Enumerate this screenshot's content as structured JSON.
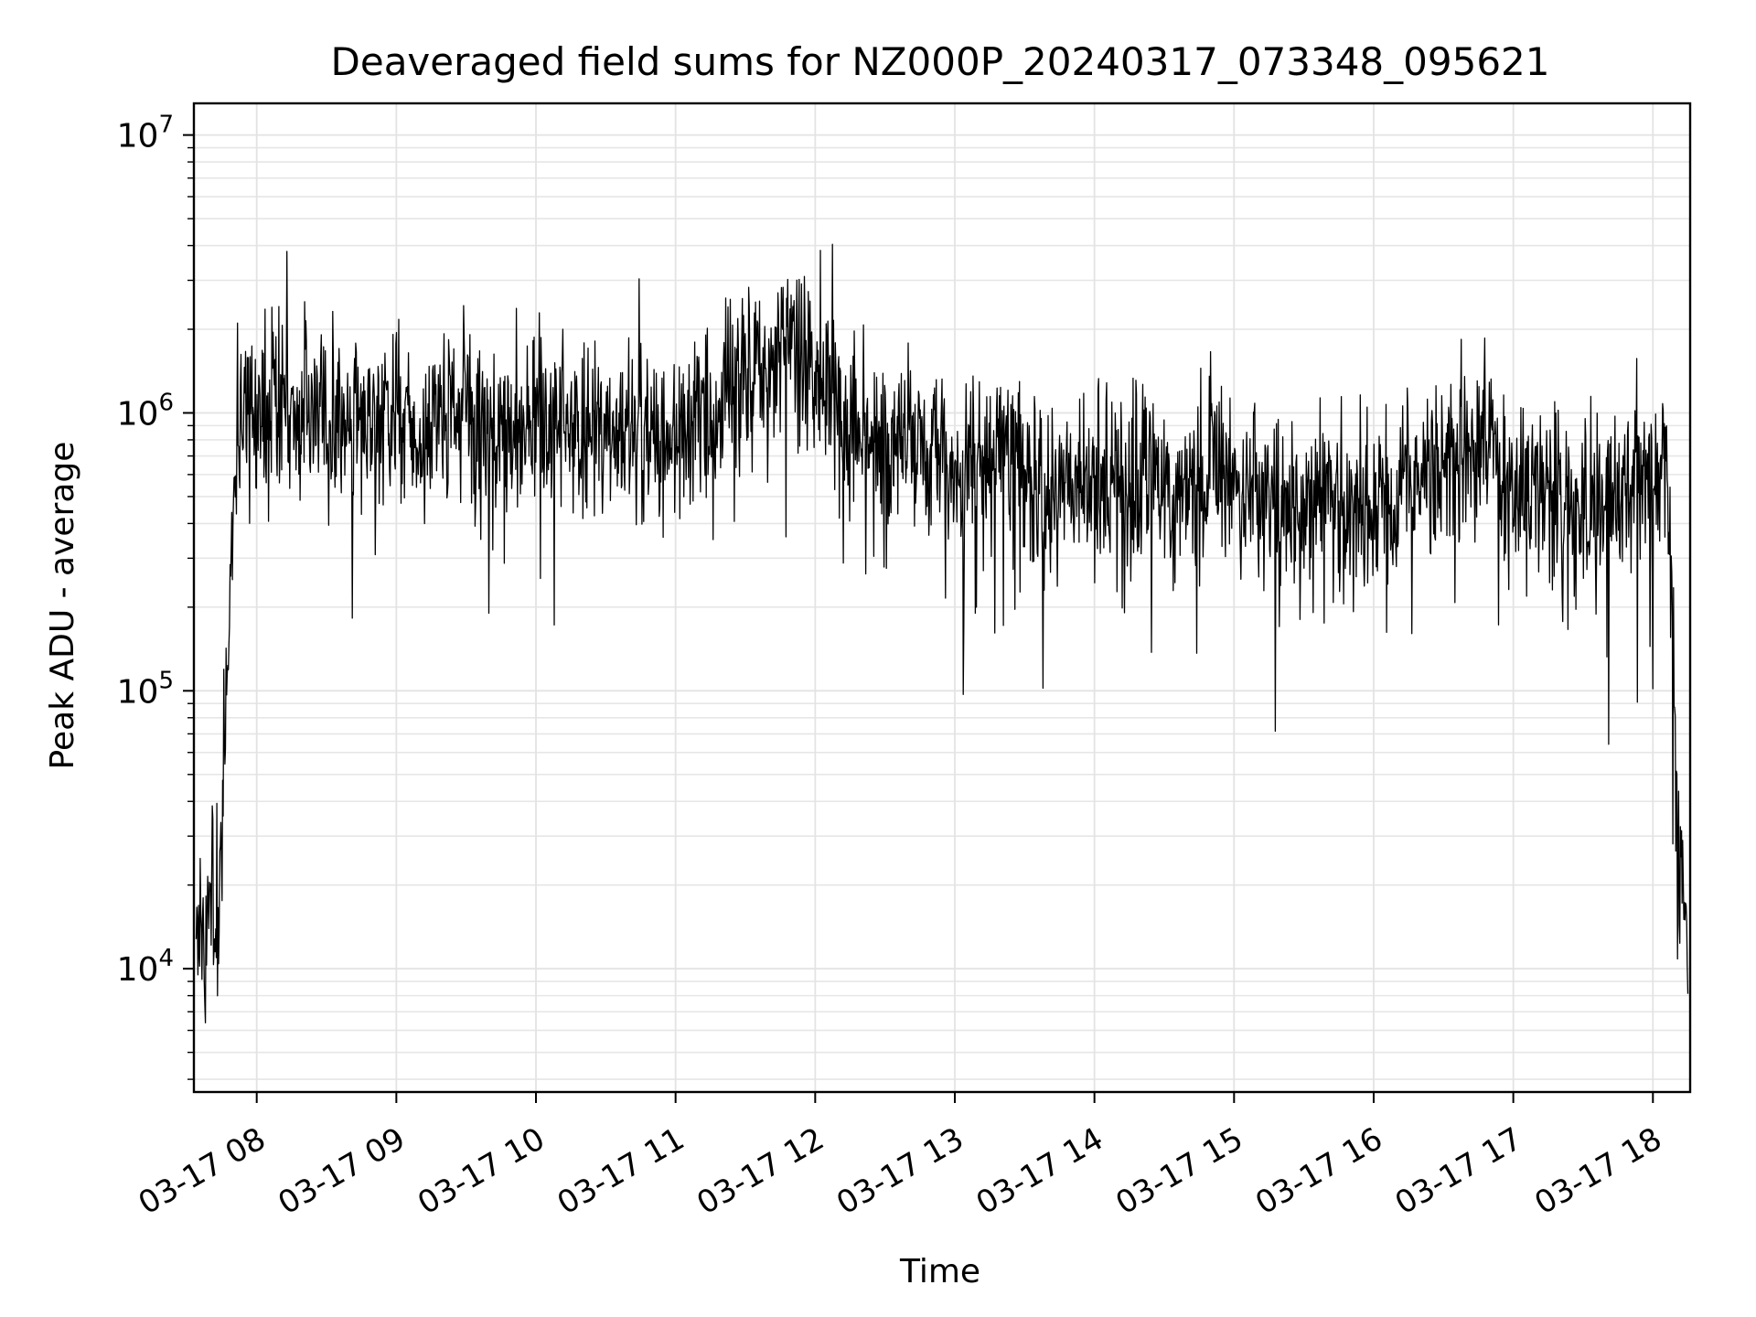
{
  "chart_data": {
    "type": "line",
    "title": "Deaveraged field sums for NZ000P_20240317_073348_095621",
    "xlabel": "Time",
    "ylabel": "Peak ADU - average",
    "yscale": "log",
    "grid": true,
    "legend": "none",
    "x_tick_labels": [
      "03-17 08",
      "03-17 09",
      "03-17 10",
      "03-17 11",
      "03-17 12",
      "03-17 13",
      "03-17 14",
      "03-17 15",
      "03-17 16",
      "03-17 17",
      "03-17 18"
    ],
    "x_ticks": [
      "2024-03-17 08:00",
      "2024-03-17 09:00",
      "2024-03-17 10:00",
      "2024-03-17 11:00",
      "2024-03-17 12:00",
      "2024-03-17 13:00",
      "2024-03-17 14:00",
      "2024-03-17 15:00",
      "2024-03-17 16:00",
      "2024-03-17 17:00",
      "2024-03-17 18:00"
    ],
    "y_tick_labels": [
      {
        "base": "10",
        "exp": "4",
        "value": 10000
      },
      {
        "base": "10",
        "exp": "5",
        "value": 100000
      },
      {
        "base": "10",
        "exp": "6",
        "value": 1000000
      },
      {
        "base": "10",
        "exp": "7",
        "value": 10000000
      }
    ],
    "xlim": [
      "2024-03-17 07:33",
      "2024-03-17 18:16"
    ],
    "ylim": [
      3600,
      13000000
    ],
    "series": [
      {
        "color": "#000000",
        "x": [
          "2024-03-17 07:34",
          "2024-03-17 07:37",
          "2024-03-17 07:40",
          "2024-03-17 07:43",
          "2024-03-17 07:45",
          "2024-03-17 07:47",
          "2024-03-17 07:50",
          "2024-03-17 07:53",
          "2024-03-17 07:56",
          "2024-03-17 08:00",
          "2024-03-17 08:05",
          "2024-03-17 08:10",
          "2024-03-17 08:15",
          "2024-03-17 08:20",
          "2024-03-17 08:25",
          "2024-03-17 08:30",
          "2024-03-17 08:40",
          "2024-03-17 08:50",
          "2024-03-17 09:00",
          "2024-03-17 09:10",
          "2024-03-17 09:20",
          "2024-03-17 09:30",
          "2024-03-17 09:40",
          "2024-03-17 09:50",
          "2024-03-17 10:00",
          "2024-03-17 10:10",
          "2024-03-17 10:20",
          "2024-03-17 10:30",
          "2024-03-17 10:40",
          "2024-03-17 10:50",
          "2024-03-17 11:00",
          "2024-03-17 11:10",
          "2024-03-17 11:20",
          "2024-03-17 11:30",
          "2024-03-17 11:40",
          "2024-03-17 11:50",
          "2024-03-17 12:00",
          "2024-03-17 12:10",
          "2024-03-17 12:20",
          "2024-03-17 12:30",
          "2024-03-17 12:40",
          "2024-03-17 12:50",
          "2024-03-17 13:00",
          "2024-03-17 13:10",
          "2024-03-17 13:20",
          "2024-03-17 13:30",
          "2024-03-17 13:40",
          "2024-03-17 13:50",
          "2024-03-17 14:00",
          "2024-03-17 14:10",
          "2024-03-17 14:20",
          "2024-03-17 14:30",
          "2024-03-17 14:40",
          "2024-03-17 14:50",
          "2024-03-17 15:00",
          "2024-03-17 15:10",
          "2024-03-17 15:20",
          "2024-03-17 15:30",
          "2024-03-17 15:40",
          "2024-03-17 15:50",
          "2024-03-17 16:00",
          "2024-03-17 16:10",
          "2024-03-17 16:20",
          "2024-03-17 16:30",
          "2024-03-17 16:40",
          "2024-03-17 16:50",
          "2024-03-17 17:00",
          "2024-03-17 17:10",
          "2024-03-17 17:20",
          "2024-03-17 17:30",
          "2024-03-17 17:40",
          "2024-03-17 17:50",
          "2024-03-17 18:00",
          "2024-03-17 18:03",
          "2024-03-17 18:06",
          "2024-03-17 18:09",
          "2024-03-17 18:12",
          "2024-03-17 18:15"
        ],
        "values": [
          15000,
          10000,
          20000,
          12000,
          30000,
          100000,
          500000,
          900000,
          1000000,
          1000000,
          1000000,
          1200000,
          900000,
          1100000,
          1000000,
          1000000,
          900000,
          1000000,
          900000,
          800000,
          900000,
          1000000,
          800000,
          850000,
          900000,
          900000,
          800000,
          850000,
          800000,
          900000,
          800000,
          900000,
          1000000,
          1300000,
          1500000,
          1800000,
          1500000,
          1000000,
          900000,
          700000,
          800000,
          700000,
          600000,
          700000,
          800000,
          600000,
          500000,
          550000,
          600000,
          550000,
          600000,
          550000,
          500000,
          600000,
          550000,
          500000,
          450000,
          450000,
          500000,
          450000,
          400000,
          500000,
          600000,
          600000,
          800000,
          700000,
          600000,
          550000,
          500000,
          450000,
          500000,
          550000,
          550000,
          600000,
          900000,
          100000,
          20000,
          10000
        ]
      }
    ]
  }
}
